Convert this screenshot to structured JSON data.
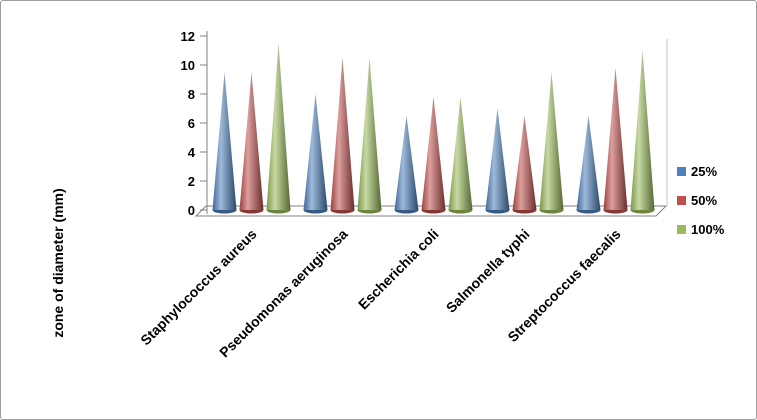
{
  "chart_data": {
    "type": "bar",
    "subtype": "3d-cone",
    "ylabel": "zone of diameter (mm)",
    "xlabel": "",
    "categories": [
      "Staphylococcus aureus",
      "Pseudomonas aeruginosa",
      "Escherichia coli",
      "Salmonella typhi",
      "Streptococcus faecalis"
    ],
    "series": [
      {
        "name": "25%",
        "color": "#4F81BD",
        "values": [
          9.5,
          8,
          6.5,
          7,
          6.5
        ]
      },
      {
        "name": "50%",
        "color": "#C0504D",
        "values": [
          9.5,
          10.5,
          7.8,
          6.5,
          9.8
        ]
      },
      {
        "name": "100%",
        "color": "#9BBB59",
        "values": [
          11.5,
          10.5,
          7.8,
          9.5,
          11
        ]
      }
    ],
    "ylim": [
      0,
      12
    ],
    "yticks": [
      0,
      2,
      4,
      6,
      8,
      10,
      12
    ],
    "grid": false,
    "legend_position": "right",
    "axis_color": "#808080",
    "text_color": "#000000"
  }
}
